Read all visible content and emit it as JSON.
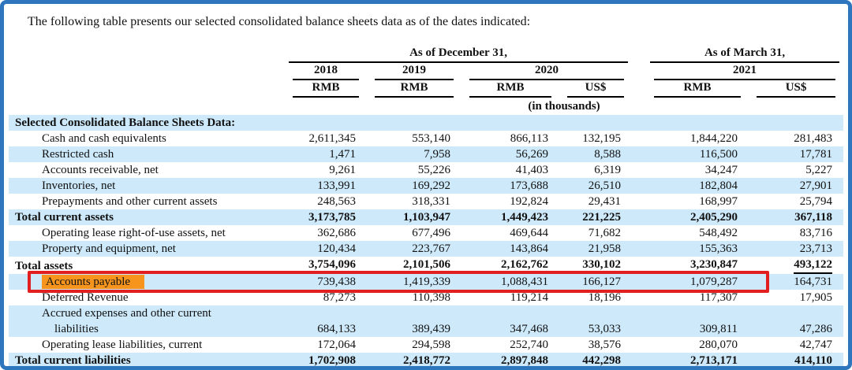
{
  "intro": "The following table presents our selected consolidated balance sheets data as of the dates indicated:",
  "colors": {
    "frame_blue": "#2E76BE",
    "row_shade": "#CDE9FA",
    "highlight_orange": "#F6941E",
    "red_box": "#E31E1E"
  },
  "header": {
    "group_december": "As of December 31,",
    "group_march": "As of March 31,",
    "years": [
      "2018",
      "2019",
      "2020",
      "2021"
    ],
    "currencies": [
      "RMB",
      "RMB",
      "RMB",
      "US$",
      "RMB",
      "US$"
    ],
    "units_note": "(in thousands)"
  },
  "rows": [
    {
      "label_lines": [
        "Selected Consolidated Balance Sheets Data:"
      ],
      "indent": 0,
      "bold": true,
      "values": []
    },
    {
      "label_lines": [
        "Cash and cash equivalents"
      ],
      "indent": 1,
      "bold": false,
      "values": [
        "2,611,345",
        "553,140",
        "866,113",
        "132,195",
        "1,844,220",
        "281,483"
      ]
    },
    {
      "label_lines": [
        "Restricted cash"
      ],
      "indent": 1,
      "bold": false,
      "values": [
        "1,471",
        "7,958",
        "56,269",
        "8,588",
        "116,500",
        "17,781"
      ]
    },
    {
      "label_lines": [
        "Accounts receivable, net"
      ],
      "indent": 1,
      "bold": false,
      "values": [
        "9,261",
        "55,226",
        "41,403",
        "6,319",
        "34,247",
        "5,227"
      ]
    },
    {
      "label_lines": [
        "Inventories, net"
      ],
      "indent": 1,
      "bold": false,
      "values": [
        "133,991",
        "169,292",
        "173,688",
        "26,510",
        "182,804",
        "27,901"
      ]
    },
    {
      "label_lines": [
        "Prepayments and other current assets"
      ],
      "indent": 1,
      "bold": false,
      "values": [
        "248,563",
        "318,331",
        "192,824",
        "29,431",
        "168,997",
        "25,794"
      ]
    },
    {
      "label_lines": [
        "Total current assets"
      ],
      "indent": 0,
      "bold": true,
      "values": [
        "3,173,785",
        "1,103,947",
        "1,449,423",
        "221,225",
        "2,405,290",
        "367,118"
      ]
    },
    {
      "label_lines": [
        "Operating lease right-of-use assets, net"
      ],
      "indent": 1,
      "bold": false,
      "values": [
        "362,686",
        "677,496",
        "469,644",
        "71,682",
        "548,492",
        "83,716"
      ]
    },
    {
      "label_lines": [
        "Property and equipment, net"
      ],
      "indent": 1,
      "bold": false,
      "values": [
        "120,434",
        "223,767",
        "143,864",
        "21,958",
        "155,363",
        "23,713"
      ]
    },
    {
      "label_lines": [
        "Total assets"
      ],
      "indent": 0,
      "bold": true,
      "underline_values": true,
      "values": [
        "3,754,096",
        "2,101,506",
        "2,162,762",
        "330,102",
        "3,230,847",
        "493,122"
      ]
    },
    {
      "label_lines": [
        "Accounts payable"
      ],
      "indent": 1,
      "bold": false,
      "highlight_label": true,
      "red_box": true,
      "values": [
        "739,438",
        "1,419,339",
        "1,088,431",
        "166,127",
        "1,079,287",
        "164,731"
      ]
    },
    {
      "label_lines": [
        "Deferred Revenue"
      ],
      "indent": 1,
      "bold": false,
      "values": [
        "87,273",
        "110,398",
        "119,214",
        "18,196",
        "117,307",
        "17,905"
      ]
    },
    {
      "label_lines": [
        "Accrued expenses and other current",
        "liabilities"
      ],
      "indent": 1,
      "bold": false,
      "values": [
        "684,133",
        "389,439",
        "347,468",
        "53,033",
        "309,811",
        "47,286"
      ]
    },
    {
      "label_lines": [
        "Operating lease liabilities, current"
      ],
      "indent": 1,
      "bold": false,
      "values": [
        "172,064",
        "294,598",
        "252,740",
        "38,576",
        "280,070",
        "42,747"
      ]
    },
    {
      "label_lines": [
        "Total current liabilities"
      ],
      "indent": 0,
      "bold": true,
      "values": [
        "1,702,908",
        "2,418,772",
        "2,897,848",
        "442,298",
        "2,713,171",
        "414,110"
      ]
    }
  ]
}
